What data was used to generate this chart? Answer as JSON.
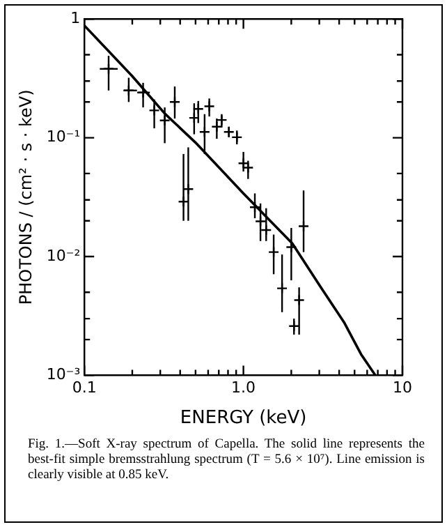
{
  "chart_data": {
    "type": "scatter",
    "xlabel": "ENERGY (keV)",
    "ylabel": "PHOTONS / (cm² · s · keV)",
    "log": "xy",
    "xlim": [
      0.1,
      10
    ],
    "ylim": [
      0.001,
      1
    ],
    "xticks": [
      {
        "value": 0.1,
        "label": "0.1"
      },
      {
        "value": 0.2,
        "label": null
      },
      {
        "value": 0.3,
        "label": null
      },
      {
        "value": 0.4,
        "label": null
      },
      {
        "value": 0.5,
        "label": null
      },
      {
        "value": 0.6,
        "label": null
      },
      {
        "value": 0.7,
        "label": null
      },
      {
        "value": 0.8,
        "label": null
      },
      {
        "value": 0.9,
        "label": null
      },
      {
        "value": 1,
        "label": "1.0"
      },
      {
        "value": 2,
        "label": null
      },
      {
        "value": 3,
        "label": null
      },
      {
        "value": 4,
        "label": null
      },
      {
        "value": 5,
        "label": null
      },
      {
        "value": 6,
        "label": null
      },
      {
        "value": 7,
        "label": null
      },
      {
        "value": 8,
        "label": null
      },
      {
        "value": 9,
        "label": null
      },
      {
        "value": 10,
        "label": "10"
      }
    ],
    "yticks": [
      {
        "value": 0.001,
        "label": "10⁻³"
      },
      {
        "value": 0.002,
        "label": null
      },
      {
        "value": 0.003,
        "label": null
      },
      {
        "value": 0.005,
        "label": null
      },
      {
        "value": 0.01,
        "label": "10⁻²"
      },
      {
        "value": 0.02,
        "label": null
      },
      {
        "value": 0.03,
        "label": null
      },
      {
        "value": 0.05,
        "label": null
      },
      {
        "value": 0.1,
        "label": "10⁻¹"
      },
      {
        "value": 0.2,
        "label": null
      },
      {
        "value": 0.3,
        "label": null
      },
      {
        "value": 0.5,
        "label": null
      },
      1
    ],
    "grid": false,
    "legend": false,
    "annotations": [
      "Fig. 1.—Soft X-ray spectrum of Capella. The solid line represents the best-fit simple bremsstrahlung spectrum (T = 5.6 × 10⁷). Line emission is clearly visible at 0.85 keV."
    ],
    "series": [
      {
        "color": "#000000",
        "marker": "cross",
        "x": [
          0.142,
          0.19,
          0.234,
          0.275,
          0.32,
          0.37,
          0.42,
          0.45,
          0.49,
          0.52,
          0.57,
          0.61,
          0.68,
          0.73,
          0.81,
          0.91,
          1.0,
          1.07,
          1.18,
          1.28,
          1.39,
          1.55,
          1.75,
          2.0,
          2.08,
          2.24,
          2.39
        ],
        "values": [
          0.38,
          0.25,
          0.24,
          0.17,
          0.14,
          0.2,
          0.029,
          0.037,
          0.147,
          0.175,
          0.112,
          0.184,
          0.124,
          0.141,
          0.112,
          0.101,
          0.061,
          0.056,
          0.026,
          0.0198,
          0.0167,
          0.0109,
          0.0054,
          0.012,
          0.0026,
          0.0043,
          0.018
        ],
        "errors": [
          [
            0.25,
            0.49
          ],
          [
            0.2,
            0.32
          ],
          [
            0.18,
            0.29
          ],
          [
            0.12,
            0.21
          ],
          [
            0.09,
            0.18
          ],
          [
            0.145,
            0.27
          ],
          [
            0.02,
            0.073
          ],
          [
            0.02,
            0.083
          ],
          [
            0.107,
            0.195
          ],
          [
            0.133,
            0.204
          ],
          [
            0.073,
            0.158
          ],
          [
            0.151,
            0.214
          ],
          [
            0.098,
            0.145
          ],
          [
            0.122,
            0.158
          ],
          [
            0.101,
            0.124
          ],
          [
            0.088,
            0.115
          ],
          [
            0.052,
            0.076
          ],
          [
            0.045,
            0.064
          ],
          [
            0.021,
            0.034
          ],
          [
            0.0135,
            0.028
          ],
          [
            0.0135,
            0.0255
          ],
          [
            0.0071,
            0.0153
          ],
          [
            0.0034,
            0.0104
          ],
          [
            0.0063,
            0.0174
          ],
          [
            0.0022,
            0.003
          ],
          [
            0.0022,
            0.0055
          ],
          [
            0.0109,
            0.036
          ]
        ],
        "xerrors": [
          [
            0.125,
            0.162
          ],
          [
            0.176,
            0.214
          ],
          [
            0.215,
            0.258
          ],
          null,
          null,
          null,
          null,
          null,
          null,
          null,
          null,
          null,
          null,
          null,
          null,
          null,
          null,
          null,
          null,
          null,
          null,
          null,
          null,
          null,
          null,
          null,
          null
        ]
      },
      {
        "type": "line",
        "color": "#000000",
        "marker": "none",
        "line_style": "solid",
        "x": [
          0.1,
          0.2,
          0.32,
          0.5,
          1,
          2.03,
          3.07,
          4.29,
          5.5,
          6.76
        ],
        "values": [
          0.88,
          0.33,
          0.16,
          0.091,
          0.034,
          0.0129,
          0.0055,
          0.0028,
          0.0015,
          0.001
        ]
      }
    ]
  }
}
